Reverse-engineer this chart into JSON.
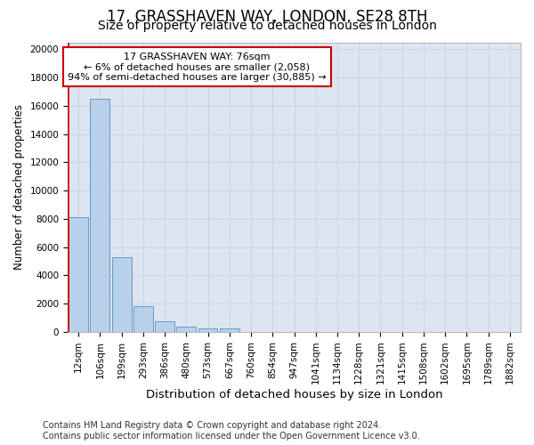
{
  "title": "17, GRASSHAVEN WAY, LONDON, SE28 8TH",
  "subtitle": "Size of property relative to detached houses in London",
  "xlabel": "Distribution of detached houses by size in London",
  "ylabel": "Number of detached properties",
  "categories": [
    "12sqm",
    "106sqm",
    "199sqm",
    "293sqm",
    "386sqm",
    "480sqm",
    "573sqm",
    "667sqm",
    "760sqm",
    "854sqm",
    "947sqm",
    "1041sqm",
    "1134sqm",
    "1228sqm",
    "1321sqm",
    "1415sqm",
    "1508sqm",
    "1602sqm",
    "1695sqm",
    "1789sqm",
    "1882sqm"
  ],
  "values": [
    8100,
    16500,
    5300,
    1850,
    780,
    380,
    280,
    220,
    0,
    0,
    0,
    0,
    0,
    0,
    0,
    0,
    0,
    0,
    0,
    0,
    0
  ],
  "bar_color": "#b8d0ea",
  "bar_edge_color": "#6699cc",
  "grid_color": "#c8d4e4",
  "bg_color": "#dde5f0",
  "fig_bg_color": "#ffffff",
  "annotation_text": "17 GRASSHAVEN WAY: 76sqm\n← 6% of detached houses are smaller (2,058)\n94% of semi-detached houses are larger (30,885) →",
  "annotation_box_color": "#ffffff",
  "annotation_box_edge": "#cc0000",
  "vline_color": "#cc0000",
  "vline_x": 0,
  "ylim": [
    0,
    20500
  ],
  "yticks": [
    0,
    2000,
    4000,
    6000,
    8000,
    10000,
    12000,
    14000,
    16000,
    18000,
    20000
  ],
  "footer": "Contains HM Land Registry data © Crown copyright and database right 2024.\nContains public sector information licensed under the Open Government Licence v3.0.",
  "title_fontsize": 12,
  "subtitle_fontsize": 10,
  "xlabel_fontsize": 9.5,
  "ylabel_fontsize": 8.5,
  "tick_fontsize": 7.5,
  "annotation_fontsize": 8,
  "footer_fontsize": 7
}
